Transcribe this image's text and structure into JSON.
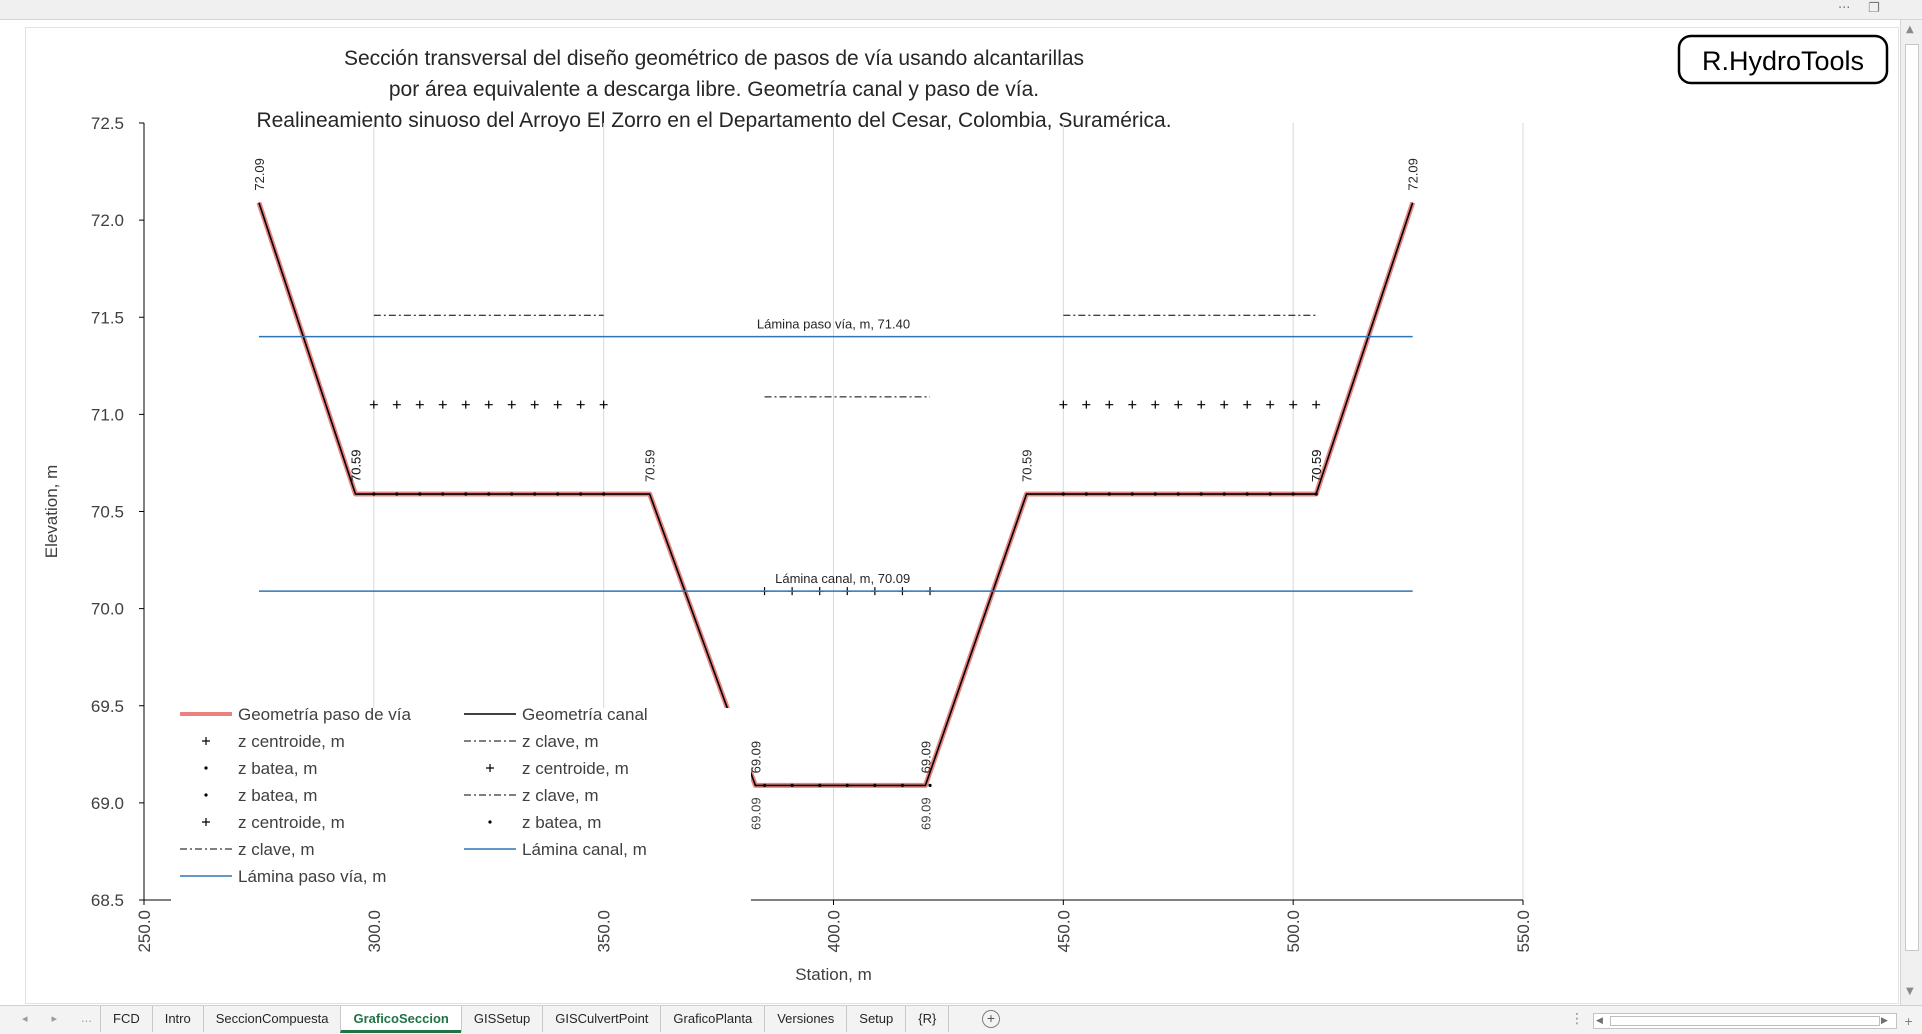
{
  "window": {
    "more_icon": "more-horizontal-icon",
    "restore_icon": "restore-window-icon"
  },
  "chart_data": {
    "type": "line",
    "title_lines": [
      "Sección transversal del diseño geométrico de pasos de vía usando alcantarillas",
      "por área equivalente a descarga libre. Geometría canal y paso de vía.",
      "Realineamiento sinuoso del Arroyo El Zorro en el Departamento del Cesar, Colombia, Suramérica."
    ],
    "logo_text": "R.HydroTools",
    "xlabel": "Station, m",
    "ylabel": "Elevation, m",
    "xlim": [
      250,
      550
    ],
    "ylim": [
      68.5,
      72.5
    ],
    "x_ticks": [
      "250.0",
      "300.0",
      "350.0",
      "400.0",
      "450.0",
      "500.0",
      "550.0"
    ],
    "x_tick_values": [
      250,
      300,
      350,
      400,
      450,
      500,
      550
    ],
    "y_ticks": [
      "68.5",
      "69.0",
      "69.5",
      "70.0",
      "70.5",
      "71.0",
      "71.5",
      "72.0",
      "72.5"
    ],
    "y_tick_values": [
      68.5,
      69.0,
      69.5,
      70.0,
      70.5,
      71.0,
      71.5,
      72.0,
      72.5
    ],
    "grid": "vertical",
    "legend_position": "bottom-left",
    "colors": {
      "road": "#e8837f",
      "canal": "#000000",
      "water": "#2e75b6"
    },
    "series": [
      {
        "name": "Geometría paso de vía",
        "style": "line",
        "color": "#e8837f",
        "x": [
          275,
          296,
          360,
          383,
          420,
          442,
          505,
          526
        ],
        "y": [
          72.09,
          70.59,
          70.59,
          69.09,
          69.09,
          70.59,
          70.59,
          72.09
        ]
      },
      {
        "name": "Geometría canal",
        "style": "line",
        "color": "#000000",
        "x": [
          275,
          296,
          360,
          383,
          420,
          442,
          505,
          526
        ],
        "y": [
          72.09,
          70.59,
          70.59,
          69.09,
          69.09,
          70.59,
          70.59,
          72.09
        ]
      },
      {
        "name": "z centroide, m",
        "style": "plus",
        "x": [
          300,
          305,
          310,
          315,
          320,
          325,
          330,
          335,
          340,
          345,
          350
        ],
        "y": [
          71.05,
          71.05,
          71.05,
          71.05,
          71.05,
          71.05,
          71.05,
          71.05,
          71.05,
          71.05,
          71.05
        ]
      },
      {
        "name": "z clave, m",
        "style": "dashdot",
        "x": [
          300,
          350
        ],
        "y": [
          71.51,
          71.51
        ]
      },
      {
        "name": "z batea, m",
        "style": "dot",
        "x": [
          300,
          305,
          310,
          315,
          320,
          325,
          330,
          335,
          340,
          345,
          350
        ],
        "y": [
          70.59,
          70.59,
          70.59,
          70.59,
          70.59,
          70.59,
          70.59,
          70.59,
          70.59,
          70.59,
          70.59
        ]
      },
      {
        "name": "z centroide, m",
        "style": "plus",
        "x": [
          385,
          391,
          397,
          403,
          409,
          415,
          421
        ],
        "y": [
          70.09,
          70.09,
          70.09,
          70.09,
          70.09,
          70.09,
          70.09
        ]
      },
      {
        "name": "z clave, m",
        "style": "dashdot",
        "x": [
          385,
          421
        ],
        "y": [
          71.09,
          71.09
        ]
      },
      {
        "name": "z batea, m",
        "style": "dot",
        "x": [
          385,
          391,
          397,
          403,
          409,
          415,
          421
        ],
        "y": [
          69.09,
          69.09,
          69.09,
          69.09,
          69.09,
          69.09,
          69.09
        ]
      },
      {
        "name": "z centroide, m",
        "style": "plus",
        "x": [
          450,
          455,
          460,
          465,
          470,
          475,
          480,
          485,
          490,
          495,
          500,
          505
        ],
        "y": [
          71.05,
          71.05,
          71.05,
          71.05,
          71.05,
          71.05,
          71.05,
          71.05,
          71.05,
          71.05,
          71.05,
          71.05
        ]
      },
      {
        "name": "z clave, m",
        "style": "dashdot",
        "x": [
          450,
          505
        ],
        "y": [
          71.51,
          71.51
        ]
      },
      {
        "name": "z batea, m",
        "style": "dot",
        "x": [
          450,
          455,
          460,
          465,
          470,
          475,
          480,
          485,
          490,
          495,
          500,
          505
        ],
        "y": [
          70.59,
          70.59,
          70.59,
          70.59,
          70.59,
          70.59,
          70.59,
          70.59,
          70.59,
          70.59,
          70.59,
          70.59
        ]
      },
      {
        "name": "Lámina canal, m",
        "style": "line",
        "color": "#2e75b6",
        "x": [
          275,
          526
        ],
        "y": [
          70.09,
          70.09
        ]
      },
      {
        "name": "Lámina paso vía, m",
        "style": "line",
        "color": "#2e75b6",
        "x": [
          275,
          526
        ],
        "y": [
          71.4,
          71.4
        ]
      }
    ],
    "legend_left": [
      {
        "label": "Geometría paso de vía",
        "marker": "road"
      },
      {
        "label": "z centroide, m",
        "marker": "plus"
      },
      {
        "label": "z batea, m",
        "marker": "dot"
      },
      {
        "label": "z batea, m",
        "marker": "dot"
      },
      {
        "label": "z centroide, m",
        "marker": "plus"
      },
      {
        "label": "z clave, m",
        "marker": "dashdot"
      },
      {
        "label": "Lámina paso vía, m",
        "marker": "water"
      }
    ],
    "legend_right": [
      {
        "label": "Geometría canal",
        "marker": "canal"
      },
      {
        "label": "z clave, m",
        "marker": "dashdot"
      },
      {
        "label": "z centroide, m",
        "marker": "plus"
      },
      {
        "label": "z clave, m",
        "marker": "dashdot"
      },
      {
        "label": "z batea, m",
        "marker": "dot"
      },
      {
        "label": "Lámina canal, m",
        "marker": "water"
      }
    ],
    "annotations": [
      {
        "text": "Lámina paso vía, m, 71.40",
        "x": 400,
        "y": 71.4,
        "rotate": false
      },
      {
        "text": "Lámina canal, m, 70.09",
        "x": 402,
        "y": 70.09,
        "rotate": false
      },
      {
        "text": "72.09",
        "x": 275,
        "y": 72.09,
        "rotate": true,
        "where": "above"
      },
      {
        "text": "72.09",
        "x": 526,
        "y": 72.09,
        "rotate": true,
        "where": "above"
      },
      {
        "text": "70.59",
        "x": 296,
        "y": 70.59,
        "rotate": true,
        "where": "above"
      },
      {
        "text": "70.59",
        "x": 296,
        "y": 70.59,
        "rotate": true,
        "where": "above"
      },
      {
        "text": "70.59",
        "x": 360,
        "y": 70.59,
        "rotate": true,
        "where": "above"
      },
      {
        "text": "70.59",
        "x": 442,
        "y": 70.59,
        "rotate": true,
        "where": "above"
      },
      {
        "text": "70.59",
        "x": 505,
        "y": 70.59,
        "rotate": true,
        "where": "above"
      },
      {
        "text": "70.59",
        "x": 505,
        "y": 70.59,
        "rotate": true,
        "where": "above"
      },
      {
        "text": "69.09",
        "x": 383,
        "y": 69.09,
        "rotate": true,
        "where": "above"
      },
      {
        "text": "69.09",
        "x": 420,
        "y": 69.09,
        "rotate": true,
        "where": "above"
      },
      {
        "text": "69.09",
        "x": 383,
        "y": 69.09,
        "rotate": true,
        "where": "below"
      },
      {
        "text": "69.09",
        "x": 420,
        "y": 69.09,
        "rotate": true,
        "where": "below"
      }
    ]
  },
  "sheet_tabs": {
    "items": [
      "FCD",
      "Intro",
      "SeccionCompuesta",
      "GraficoSeccion",
      "GISSetup",
      "GISCulvertPoint",
      "GraficoPlanta",
      "Versiones",
      "Setup",
      "{R}"
    ],
    "active_index": 3,
    "add_label": "+"
  }
}
